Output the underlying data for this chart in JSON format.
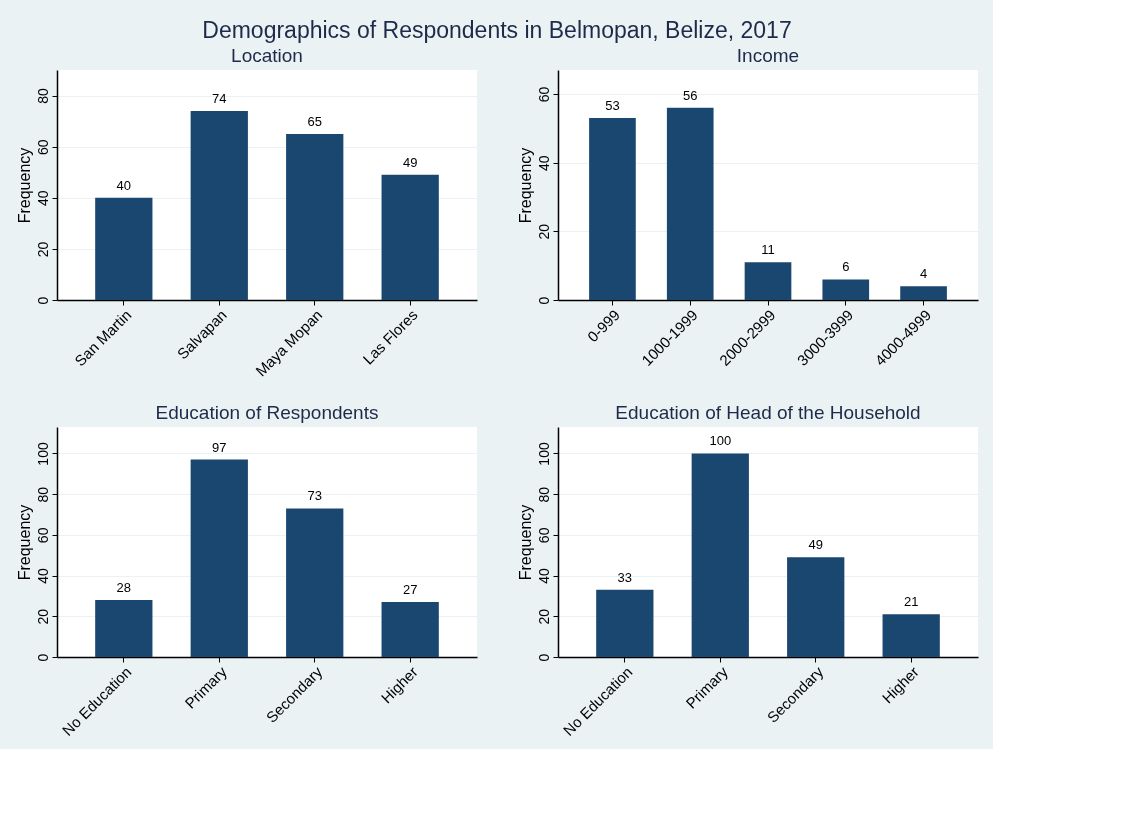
{
  "chart_data": [
    {
      "type": "bar",
      "title": "Demographics of Respondents in Belmopan, Belize, 2017",
      "subtitle": "Location",
      "ylabel": "Frequency",
      "categories": [
        "San Martin",
        "Salvapan",
        "Maya Mopan",
        "Las Flores"
      ],
      "values": [
        40,
        74,
        65,
        49
      ],
      "color": "#1a476f",
      "ylim": [
        0,
        90
      ],
      "yticks": [
        0,
        20,
        40,
        60,
        80
      ],
      "grid": "y",
      "data_labels": true
    },
    {
      "type": "bar",
      "title": "Income",
      "ylabel": "Frequency",
      "categories": [
        "0-999",
        "1000-1999",
        "2000-2999",
        "3000-3999",
        "4000-4999"
      ],
      "values": [
        53,
        56,
        11,
        6,
        4
      ],
      "color": "#1a476f",
      "ylim": [
        0,
        67
      ],
      "yticks": [
        0,
        20,
        40,
        60
      ],
      "grid": "y",
      "data_labels": true
    },
    {
      "type": "bar",
      "title": "Education of Respondents",
      "ylabel": "Frequency",
      "categories": [
        "No Education",
        "Primary",
        "Secondary",
        "Higher"
      ],
      "values": [
        28,
        97,
        73,
        27
      ],
      "color": "#1a476f",
      "ylim": [
        0,
        113
      ],
      "yticks": [
        0,
        20,
        40,
        60,
        80,
        100
      ],
      "grid": "y",
      "data_labels": true
    },
    {
      "type": "bar",
      "title": "Education of Head of the Household",
      "ylabel": "Frequency",
      "categories": [
        "No Education",
        "Primary",
        "Secondary",
        "Higher"
      ],
      "values": [
        33,
        100,
        49,
        21
      ],
      "color": "#1a476f",
      "ylim": [
        0,
        113
      ],
      "yticks": [
        0,
        20,
        40,
        60,
        80,
        100
      ],
      "grid": "y",
      "data_labels": true
    }
  ]
}
